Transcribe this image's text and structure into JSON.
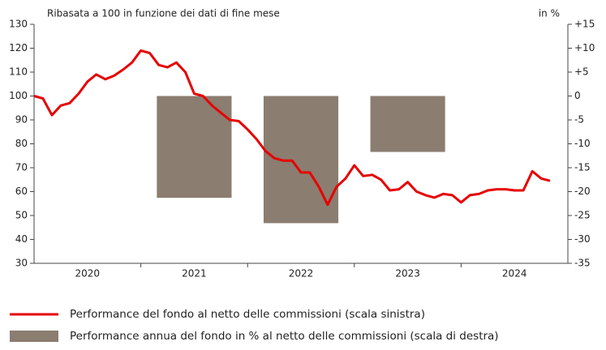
{
  "chart_data": {
    "type": "combo",
    "ylabel": "Ribasata a 100 in funzione dei dati di fine mese",
    "y2label": "in %",
    "categories": [
      "2020",
      "2021",
      "2022",
      "2023",
      "2024"
    ],
    "xlim": [
      2020,
      2025
    ],
    "ylim": [
      30,
      130
    ],
    "yticks": [
      30,
      40,
      50,
      60,
      70,
      80,
      90,
      100,
      110,
      120,
      130
    ],
    "y2lim": [
      -35,
      15
    ],
    "y2ticks": [
      -35,
      -30,
      -25,
      -20,
      -15,
      -10,
      -5,
      0,
      {
        "value": 5,
        "label": "+5"
      },
      {
        "value": 10,
        "label": "+10"
      },
      {
        "value": 15,
        "label": "+15"
      }
    ],
    "series": [
      {
        "name": "Performance del fondo al netto delle commissioni (scala sinistra)",
        "type": "line",
        "color": "#e60000",
        "x": [
          2020,
          2020.083,
          2020.167,
          2020.25,
          2020.333,
          2020.417,
          2020.5,
          2020.583,
          2020.667,
          2020.75,
          2020.833,
          2020.917,
          2021,
          2021.083,
          2021.167,
          2021.25,
          2021.333,
          2021.417,
          2021.5,
          2021.583,
          2021.667,
          2021.75,
          2021.833,
          2021.917,
          2022,
          2022.083,
          2022.167,
          2022.25,
          2022.333,
          2022.417,
          2022.5,
          2022.583,
          2022.667,
          2022.75,
          2022.833,
          2022.917,
          2023,
          2023.083,
          2023.167,
          2023.25,
          2023.333,
          2023.417,
          2023.5,
          2023.583,
          2023.667,
          2023.75,
          2023.833,
          2023.917,
          2024,
          2024.083,
          2024.167,
          2024.25,
          2024.333,
          2024.417,
          2024.5,
          2024.583,
          2024.667,
          2024.75,
          2024.833
        ],
        "values": [
          100,
          99,
          92,
          96,
          97,
          101,
          106,
          109,
          107,
          108.5,
          111,
          114,
          119,
          118,
          113,
          112,
          114,
          110,
          101,
          100,
          96,
          93,
          90,
          89.5,
          86,
          82,
          77,
          74,
          73,
          73,
          68,
          68,
          62,
          54.5,
          62,
          65.5,
          71,
          66.5,
          67,
          65,
          60.5,
          61,
          64,
          60,
          58.5,
          57.5,
          59,
          58.5,
          55.5,
          58.5,
          59,
          60.5,
          61,
          61,
          60.5,
          60.5,
          68.5,
          65.5,
          64.5
        ]
      },
      {
        "name": "Performance annua del fondo in % al netto delle commissioni (scala di destra)",
        "type": "bar",
        "axis": "y2",
        "color": "#8b7d70",
        "values": [
          null,
          -21.3,
          -26.6,
          -11.7,
          null
        ]
      }
    ]
  }
}
